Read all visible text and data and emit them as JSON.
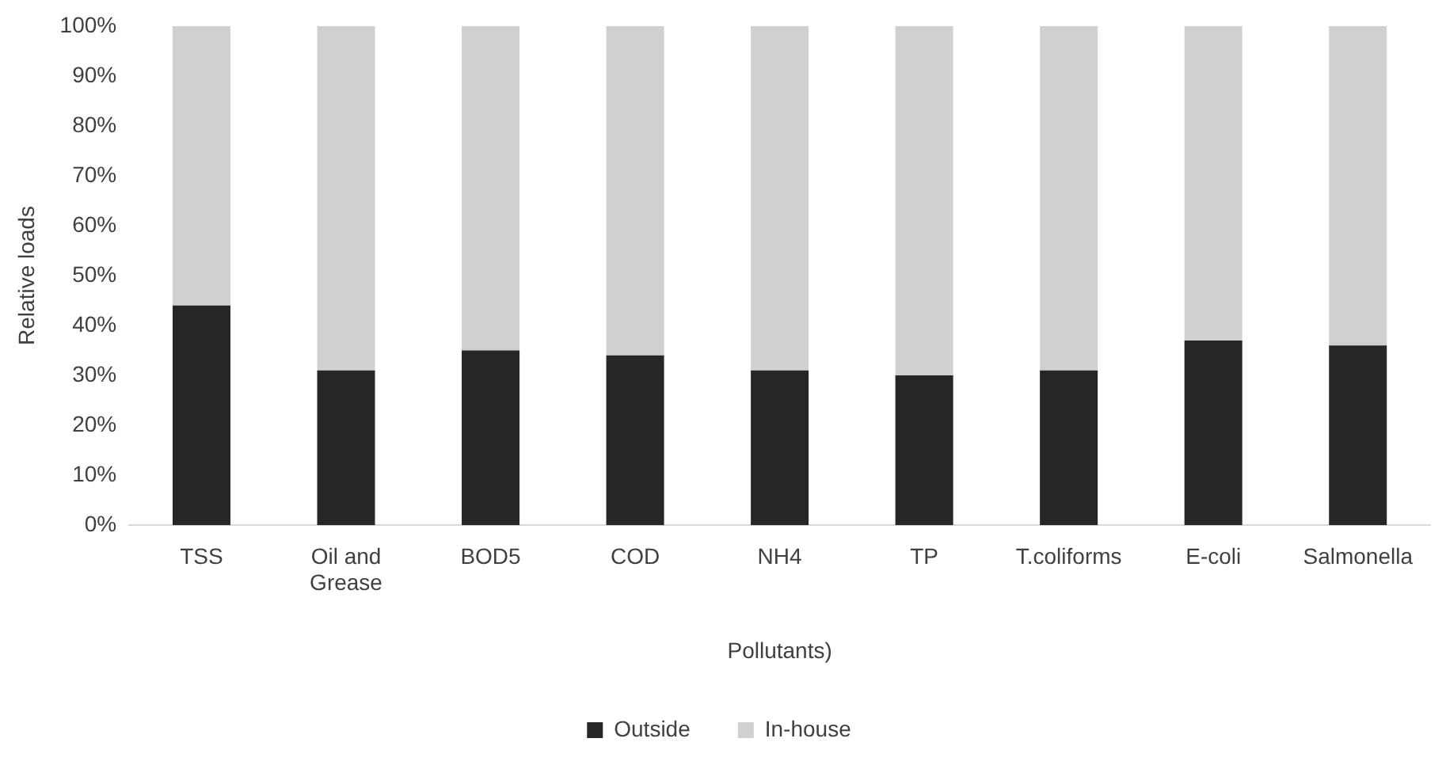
{
  "chart_data": {
    "type": "bar",
    "stacked": true,
    "xlabel": "Pollutants)",
    "ylabel": "Relative loads",
    "categories": [
      "TSS",
      "Oil and Grease",
      "BOD5",
      "COD",
      "NH4",
      "TP",
      "T.coliforms",
      "E-coli",
      "Salmonella"
    ],
    "series": [
      {
        "name": "Outside",
        "color": "#262626",
        "values": [
          44,
          31,
          35,
          34,
          31,
          30,
          31,
          37,
          36
        ]
      },
      {
        "name": "In-house",
        "color": "#d0d0d0",
        "values": [
          56,
          69,
          65,
          66,
          69,
          70,
          69,
          63,
          64
        ]
      }
    ],
    "ylim": [
      0,
      100
    ],
    "yticks": [
      {
        "value": 0,
        "label": "0%"
      },
      {
        "value": 10,
        "label": "10%"
      },
      {
        "value": 20,
        "label": "20%"
      },
      {
        "value": 30,
        "label": "30%"
      },
      {
        "value": 40,
        "label": "40%"
      },
      {
        "value": 50,
        "label": "50%"
      },
      {
        "value": 60,
        "label": "60%"
      },
      {
        "value": 70,
        "label": "70%"
      },
      {
        "value": 80,
        "label": "80%"
      },
      {
        "value": 90,
        "label": "90%"
      },
      {
        "value": 100,
        "label": "100%"
      }
    ],
    "grid": false,
    "legend": "bottom"
  }
}
